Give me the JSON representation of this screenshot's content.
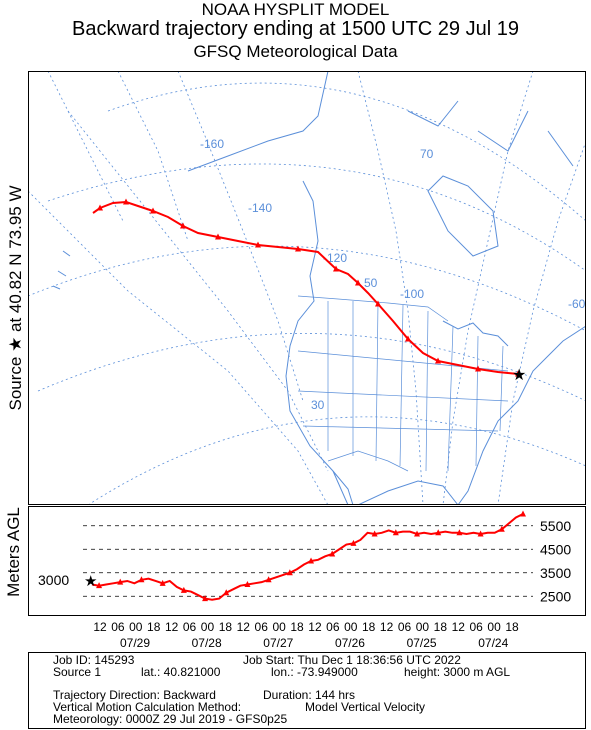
{
  "header": {
    "line1": "NOAA HYSPLIT MODEL",
    "line2": "Backward trajectory ending at 1500 UTC 29 Jul 19",
    "line3": "GFSQ Meteorological Data"
  },
  "map": {
    "side_label": "Source ★ at 40.82 N 73.95 W",
    "grid_labels": [
      {
        "id": "lon-160",
        "text": "-160"
      },
      {
        "id": "lon-140",
        "text": "-140"
      },
      {
        "id": "lon-120",
        "text": "-120"
      },
      {
        "id": "lon-100",
        "text": "-100"
      },
      {
        "id": "lat-70",
        "text": "70"
      },
      {
        "id": "lat-50",
        "text": "50"
      },
      {
        "id": "lat-30",
        "text": "30"
      },
      {
        "id": "lon-60",
        "text": "-60"
      }
    ],
    "colors": {
      "trajectory": "#ff0000",
      "grid": "#5b8fd9",
      "land": "#5b8fd9"
    },
    "source": {
      "lat": 40.82,
      "lon": -73.95
    }
  },
  "altitude_panel": {
    "ylabel": "Meters AGL",
    "start_height_label": "3000",
    "ticks": [
      "5500",
      "4500",
      "3500",
      "2500"
    ]
  },
  "time_axis": {
    "hours": [
      "12",
      "06",
      "00",
      "18",
      "12",
      "06",
      "00",
      "18",
      "12",
      "06",
      "00",
      "18",
      "12",
      "06",
      "00",
      "18",
      "12",
      "06",
      "00",
      "18",
      "12",
      "06",
      "00",
      "18"
    ],
    "dates": [
      "07/29",
      "07/28",
      "07/27",
      "07/26",
      "07/25",
      "07/24"
    ]
  },
  "chart_data": {
    "type": "line",
    "title": "",
    "xlabel": "",
    "ylabel": "Meters AGL",
    "ylim": [
      2000,
      6000
    ],
    "series": [
      {
        "values": [
          6000,
          5850,
          5600,
          5350,
          5200,
          5200,
          5150,
          5200,
          5150,
          5200,
          5200,
          5250,
          5200,
          5150,
          5200,
          5150,
          5250,
          5250,
          5200,
          5300,
          5200,
          5150,
          5200,
          4900,
          4750,
          4700,
          4500,
          4300,
          4200,
          4050,
          4000,
          3850,
          3650,
          3500,
          3400,
          3300,
          3200,
          3100,
          3050,
          3000,
          2950,
          2800,
          2650,
          2400,
          2350,
          2400,
          2550,
          2700,
          2750,
          2900,
          3150,
          3050,
          3150,
          3250,
          3200,
          3050,
          3150,
          3100,
          3050,
          3000,
          2950,
          3000
        ]
      }
    ]
  },
  "info": {
    "job_id": "Job ID: 145293",
    "job_start": "Job Start: Thu Dec  1 18:36:56 UTC 2022",
    "source": "Source 1",
    "lat": "lat.: 40.821000",
    "lon": "lon.: -73.949000",
    "height": "height: 3000 m AGL",
    "direction": "Trajectory Direction: Backward",
    "duration": "Duration: 144 hrs",
    "vertical": "Vertical Motion Calculation Method:",
    "vertical_value": "Model Vertical Velocity",
    "meteorology": "Meteorology: 0000Z 29 Jul 2019 - GFS0p25"
  }
}
